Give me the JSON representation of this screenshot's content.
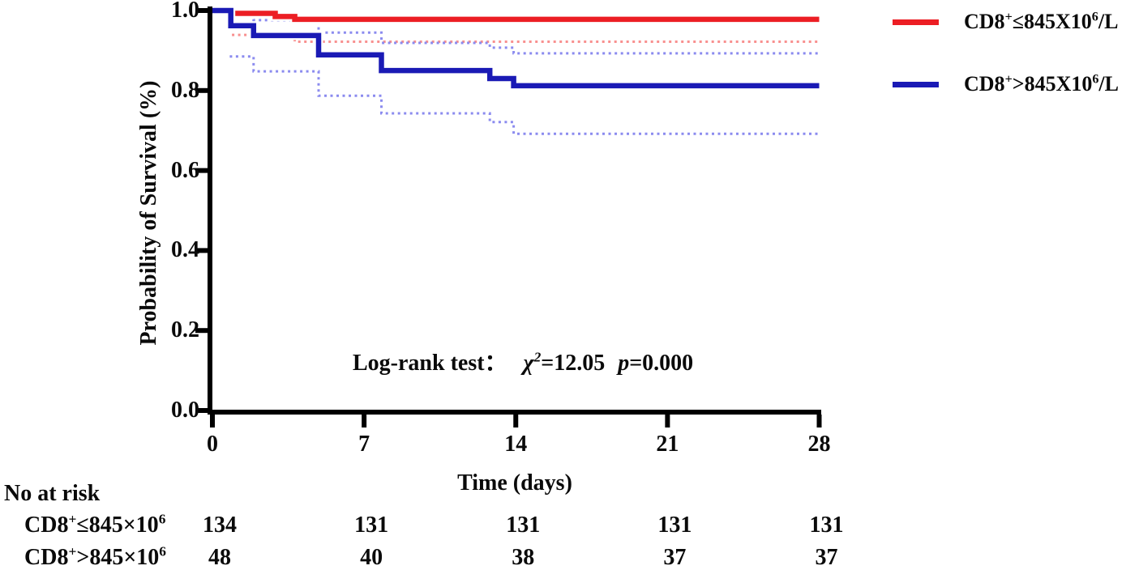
{
  "figure": {
    "ylabel": "Probability of Survival (%)",
    "xlabel": "Time (days)"
  },
  "annotation": {
    "lead": "Log-rank test：",
    "chi": "χ",
    "chi_sup": "2",
    "chi_eq": "=12.05",
    "p": "p",
    "p_eq": "=0.000"
  },
  "legend": {
    "items": [
      {
        "prefix": "CD8",
        "sup1": "+",
        "mid": "≤845X10",
        "sup2": "6",
        "suffix": "/L",
        "color": "#EC1E24"
      },
      {
        "prefix": "CD8",
        "sup1": "+",
        "mid": ">845X10",
        "sup2": "6",
        "suffix": "/L",
        "color": "#1A1AB5"
      }
    ]
  },
  "risk_table": {
    "title": "No at risk",
    "rows": [
      {
        "prefix": "CD8",
        "sup1": "+",
        "mid": "≤845×10",
        "sup2": "6",
        "counts": [
          "134",
          "131",
          "131",
          "131",
          "131"
        ]
      },
      {
        "prefix": "CD8",
        "sup1": "+",
        "mid": ">845×10",
        "sup2": "6",
        "counts": [
          "48",
          "40",
          "38",
          "37",
          "37"
        ]
      }
    ]
  },
  "chart_data": {
    "type": "line",
    "subtype": "kaplan-meier-step-with-95ci",
    "title": "",
    "xlabel": "Time (days)",
    "ylabel": "Probability of Survival (%)",
    "xlim": [
      0,
      28
    ],
    "ylim": [
      0.0,
      1.0
    ],
    "xticks": [
      0,
      7,
      14,
      21,
      28
    ],
    "yticks": [
      1.0,
      0.8,
      0.6,
      0.4,
      0.2,
      0.0
    ],
    "grid": false,
    "legend_position": "right-top",
    "annotation": "Log-rank test: χ²=12.05 p=0.000",
    "axis_color": "#000000",
    "series": [
      {
        "name": "CD8+≤845X10^6/L lower 95% CI",
        "role": "ci",
        "color": "#F8908F",
        "dotted": true,
        "points": [
          [
            0.9,
            0.939
          ],
          [
            2.9,
            0.939
          ],
          [
            2.9,
            0.931
          ],
          [
            3.8,
            0.931
          ],
          [
            3.8,
            0.922
          ],
          [
            28,
            0.922
          ]
        ]
      },
      {
        "name": "CD8+>845X10^6/L upper 95% CI",
        "role": "ci",
        "color": "#8B8BEF",
        "dotted": true,
        "points": [
          [
            1.0,
            0.99
          ],
          [
            1.9,
            0.99
          ],
          [
            1.9,
            0.976
          ],
          [
            4.9,
            0.976
          ],
          [
            4.9,
            0.945
          ],
          [
            7.8,
            0.945
          ],
          [
            7.8,
            0.919
          ],
          [
            12.8,
            0.919
          ],
          [
            12.8,
            0.907
          ],
          [
            13.9,
            0.907
          ],
          [
            13.9,
            0.893
          ],
          [
            28,
            0.893
          ]
        ]
      },
      {
        "name": "CD8+>845X10^6/L lower 95% CI",
        "role": "ci",
        "color": "#8B8BEF",
        "dotted": true,
        "points": [
          [
            0.8,
            0.885
          ],
          [
            1.9,
            0.885
          ],
          [
            1.9,
            0.848
          ],
          [
            4.9,
            0.848
          ],
          [
            4.9,
            0.787
          ],
          [
            7.8,
            0.787
          ],
          [
            7.8,
            0.743
          ],
          [
            12.8,
            0.743
          ],
          [
            12.8,
            0.721
          ],
          [
            13.9,
            0.721
          ],
          [
            13.9,
            0.692
          ],
          [
            28,
            0.692
          ]
        ]
      },
      {
        "name": "CD8+≤845X10^6/L",
        "role": "estimate",
        "color": "#EC1E24",
        "dotted": false,
        "points": [
          [
            0,
            1.0
          ],
          [
            0.9,
            1.0
          ],
          [
            0.9,
            0.993
          ],
          [
            2.9,
            0.993
          ],
          [
            2.9,
            0.985
          ],
          [
            3.8,
            0.985
          ],
          [
            3.8,
            0.978
          ],
          [
            28,
            0.978
          ]
        ]
      },
      {
        "name": "CD8+>845X10^6/L",
        "role": "estimate",
        "color": "#1A1AB5",
        "dotted": false,
        "points": [
          [
            0,
            1.0
          ],
          [
            0.85,
            1.0
          ],
          [
            0.85,
            0.962
          ],
          [
            1.9,
            0.962
          ],
          [
            1.9,
            0.9375
          ],
          [
            4.9,
            0.9375
          ],
          [
            4.9,
            0.889
          ],
          [
            7.8,
            0.889
          ],
          [
            7.8,
            0.85
          ],
          [
            12.8,
            0.85
          ],
          [
            12.8,
            0.83
          ],
          [
            13.9,
            0.83
          ],
          [
            13.9,
            0.812
          ],
          [
            28,
            0.812
          ]
        ]
      }
    ],
    "risk_table": {
      "label": "No at risk",
      "time_points": [
        0,
        7,
        14,
        21,
        28
      ],
      "rows": [
        {
          "label": "CD8+≤845×10^6",
          "counts": [
            134,
            131,
            131,
            131,
            131
          ]
        },
        {
          "label": "CD8+>845×10^6",
          "counts": [
            48,
            40,
            38,
            37,
            37
          ]
        }
      ]
    }
  }
}
